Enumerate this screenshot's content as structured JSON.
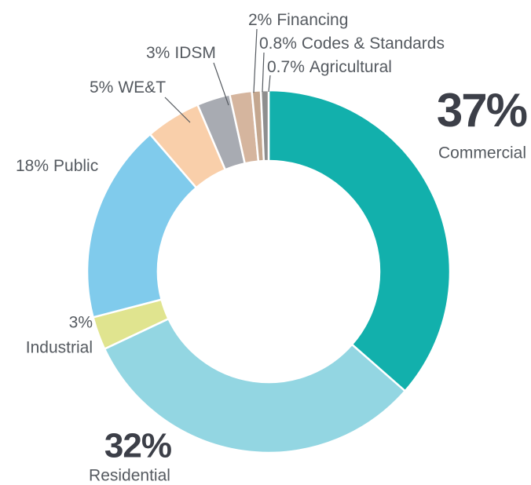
{
  "chart_data": {
    "type": "donut",
    "categories": [
      "Commercial",
      "Residential",
      "Industrial",
      "Public",
      "WE&T",
      "IDSM",
      "Financing",
      "Codes & Standards",
      "Agricultural"
    ],
    "values": [
      37,
      32,
      3,
      18,
      5,
      3,
      2,
      0.8,
      0.7
    ],
    "value_labels": [
      "37%",
      "32%",
      "3%",
      "18%",
      "5%",
      "3%",
      "2%",
      "0.8%",
      "0.7%"
    ],
    "colors": [
      "#12b0ac",
      "#93d6e2",
      "#e0e48f",
      "#80cbec",
      "#f9cfaa",
      "#a8abb2",
      "#d5b59e",
      "#c4a78f",
      "#8e8e8e"
    ]
  }
}
